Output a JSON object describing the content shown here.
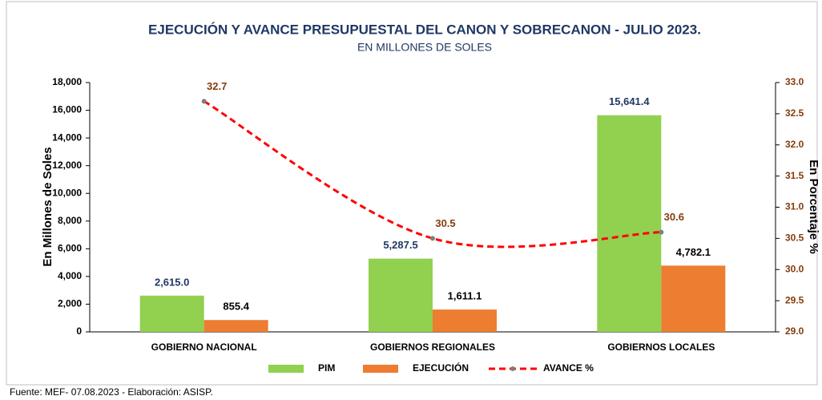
{
  "chart_data": {
    "type": "bar",
    "title": "EJECUCIÓN Y AVANCE  PRESUPUESTAL DEL CANON Y SOBRECANON - JULIO 2023.",
    "subtitle": "EN MILLONES DE SOLES",
    "y_label": "En Millones de Soles",
    "y2_label": "En Porcentaje %",
    "source": "Fuente: MEF- 07.08.2023 - Elaboración: ASISP.",
    "categories": [
      "GOBIERNO NACIONAL",
      "GOBIERNOS REGIONALES",
      "GOBIERNOS LOCALES"
    ],
    "series": [
      {
        "name": "PIM",
        "color": "#92d050",
        "values": [
          2615.0,
          5287.5,
          15641.4
        ],
        "value_labels": [
          "2,615.0",
          "5,287.5",
          "15,641.4"
        ]
      },
      {
        "name": "EJECUCIÓN",
        "color": "#ed7d31",
        "values": [
          855.4,
          1611.1,
          4782.1
        ],
        "value_labels": [
          "855.4",
          "1,611.1",
          "4,782.1"
        ]
      },
      {
        "name": "AVANCE %",
        "color": "#ff0000",
        "type": "line",
        "axis": "y2",
        "values": [
          32.7,
          30.5,
          30.6
        ]
      }
    ],
    "ylim": [
      0,
      18000
    ],
    "yticks": [
      0,
      {
        "value": 2000,
        "label": "2,000"
      },
      {
        "value": 4000,
        "label": "4,000"
      },
      {
        "value": 6000,
        "label": "6,000"
      },
      {
        "value": 8000,
        "label": "8,000"
      },
      {
        "value": 10000,
        "label": "10,000"
      },
      {
        "value": 12000,
        "label": "12,000"
      },
      {
        "value": 14000,
        "label": "14,000"
      },
      {
        "value": 16000,
        "label": "16,000"
      },
      {
        "value": 18000,
        "label": "18,000"
      }
    ],
    "y2lim": [
      29,
      33
    ],
    "y2ticks": [
      {
        "value": 29,
        "label": "29.0"
      },
      {
        "value": 29.5,
        "label": "29.5"
      },
      {
        "value": 30,
        "label": "30.0"
      },
      30.5,
      {
        "value": 31,
        "label": "31.0"
      },
      31.5,
      {
        "value": 32,
        "label": "32.0"
      },
      32.5,
      {
        "value": 33,
        "label": "33.0"
      }
    ],
    "legend": "bottom"
  }
}
